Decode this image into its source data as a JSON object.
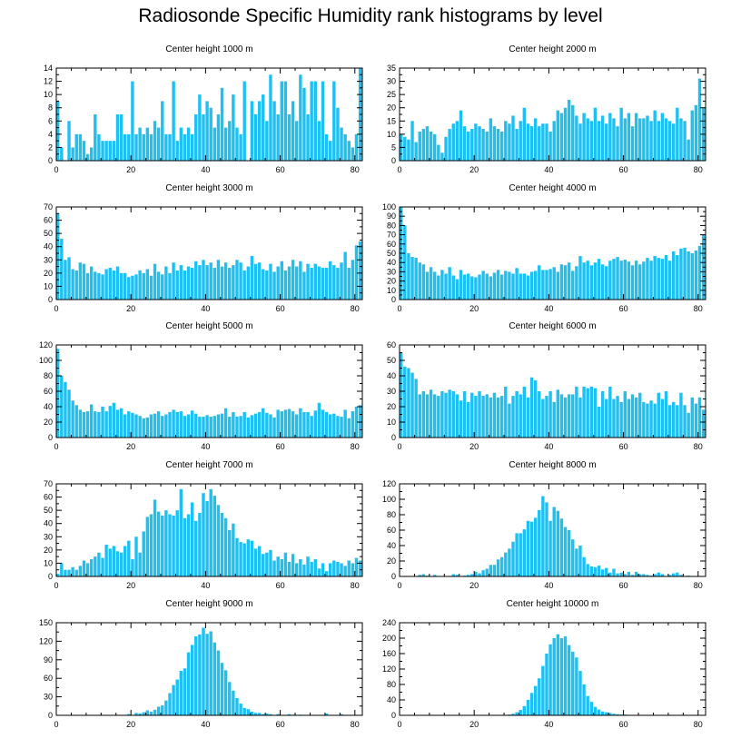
{
  "title": "Radiosonde Specific Humidity rank histograms by level",
  "colors": {
    "bar": "#1ec0f2",
    "axis": "#000000"
  },
  "chart_data": [
    {
      "type": "bar",
      "title": "Center height 1000 m",
      "xlim": [
        0,
        82
      ],
      "ylim": [
        0,
        14
      ],
      "xticks": [
        0,
        20,
        40,
        60,
        80
      ],
      "yticks": [
        0,
        2,
        4,
        6,
        8,
        10,
        12,
        14
      ],
      "values": [
        9,
        2,
        0,
        6,
        2,
        4,
        4,
        3,
        1,
        2,
        7,
        4,
        3,
        3,
        3,
        3,
        7,
        7,
        4,
        4,
        12,
        4,
        5,
        4,
        5,
        4,
        6,
        5,
        9,
        4,
        4,
        12,
        3,
        5,
        4,
        5,
        4,
        7,
        10,
        7,
        9,
        8,
        5,
        7,
        11,
        5,
        6,
        10,
        5,
        4,
        12,
        0,
        9,
        7,
        9,
        10,
        6,
        13,
        9,
        7,
        12,
        12,
        7,
        9,
        6,
        13,
        11,
        7,
        12,
        12,
        6,
        12,
        4,
        3,
        12,
        8,
        5,
        4,
        3,
        2,
        4,
        14
      ]
    },
    {
      "type": "bar",
      "title": "Center height 2000 m",
      "xlim": [
        0,
        82
      ],
      "ylim": [
        0,
        35
      ],
      "xticks": [
        0,
        20,
        40,
        60,
        80
      ],
      "yticks": [
        0,
        5,
        10,
        15,
        20,
        25,
        30,
        35
      ],
      "values": [
        10,
        9,
        8,
        15,
        7,
        11,
        12,
        13,
        11,
        10,
        6,
        3,
        9,
        12,
        14,
        15,
        19,
        13,
        11,
        12,
        14,
        13,
        12,
        11,
        16,
        13,
        12,
        11,
        15,
        14,
        17,
        12,
        15,
        20,
        14,
        13,
        16,
        13,
        14,
        14,
        11,
        15,
        19,
        18,
        20,
        23,
        21,
        17,
        14,
        18,
        16,
        15,
        20,
        15,
        17,
        14,
        18,
        16,
        13,
        20,
        16,
        18,
        13,
        18,
        16,
        16,
        17,
        15,
        19,
        15,
        18,
        16,
        15,
        14,
        20,
        16,
        15,
        8,
        19,
        21,
        31,
        20
      ]
    },
    {
      "type": "bar",
      "title": "Center height 3000 m",
      "xlim": [
        0,
        82
      ],
      "ylim": [
        0,
        70
      ],
      "xticks": [
        0,
        20,
        40,
        60,
        80
      ],
      "yticks": [
        0,
        10,
        20,
        30,
        40,
        50,
        60,
        70
      ],
      "values": [
        65,
        46,
        30,
        32,
        23,
        22,
        28,
        27,
        20,
        25,
        21,
        20,
        19,
        23,
        24,
        22,
        25,
        20,
        20,
        17,
        18,
        19,
        22,
        20,
        23,
        18,
        27,
        21,
        19,
        25,
        20,
        28,
        22,
        26,
        22,
        25,
        24,
        29,
        26,
        30,
        26,
        28,
        24,
        30,
        25,
        28,
        24,
        26,
        30,
        28,
        22,
        25,
        33,
        27,
        28,
        23,
        22,
        27,
        21,
        25,
        29,
        22,
        25,
        30,
        25,
        29,
        21,
        27,
        24,
        27,
        25,
        24,
        24,
        29,
        26,
        24,
        28,
        36,
        24,
        30,
        41,
        44
      ]
    },
    {
      "type": "bar",
      "title": "Center height 4000 m",
      "xlim": [
        0,
        82
      ],
      "ylim": [
        0,
        100
      ],
      "xticks": [
        0,
        20,
        40,
        60,
        80
      ],
      "yticks": [
        0,
        10,
        20,
        30,
        40,
        50,
        60,
        70,
        80,
        90,
        100
      ],
      "values": [
        100,
        80,
        50,
        46,
        45,
        40,
        38,
        30,
        35,
        30,
        26,
        32,
        28,
        35,
        26,
        22,
        32,
        27,
        28,
        25,
        24,
        27,
        31,
        28,
        25,
        29,
        32,
        27,
        31,
        30,
        28,
        34,
        28,
        28,
        26,
        30,
        31,
        37,
        32,
        32,
        33,
        35,
        30,
        38,
        37,
        40,
        31,
        36,
        47,
        40,
        42,
        37,
        40,
        44,
        38,
        36,
        42,
        44,
        46,
        42,
        43,
        41,
        37,
        42,
        38,
        41,
        45,
        42,
        47,
        45,
        44,
        48,
        42,
        52,
        48,
        55,
        56,
        52,
        50,
        53,
        58,
        70
      ]
    },
    {
      "type": "bar",
      "title": "Center height 5000 m",
      "xlim": [
        0,
        82
      ],
      "ylim": [
        0,
        120
      ],
      "xticks": [
        0,
        20,
        40,
        60,
        80
      ],
      "yticks": [
        0,
        20,
        40,
        60,
        80,
        100,
        120
      ],
      "values": [
        115,
        80,
        72,
        62,
        48,
        42,
        36,
        33,
        34,
        43,
        34,
        33,
        40,
        34,
        41,
        45,
        36,
        38,
        30,
        34,
        32,
        30,
        28,
        25,
        26,
        30,
        31,
        34,
        28,
        30,
        33,
        36,
        33,
        34,
        28,
        30,
        35,
        31,
        27,
        27,
        29,
        27,
        28,
        30,
        31,
        38,
        27,
        33,
        27,
        28,
        33,
        26,
        29,
        31,
        33,
        38,
        32,
        30,
        26,
        36,
        34,
        36,
        37,
        34,
        30,
        38,
        33,
        33,
        28,
        35,
        45,
        36,
        33,
        30,
        31,
        28,
        27,
        36,
        25,
        34,
        40,
        42
      ]
    },
    {
      "type": "bar",
      "title": "Center height 6000 m",
      "xlim": [
        0,
        82
      ],
      "ylim": [
        0,
        60
      ],
      "xticks": [
        0,
        20,
        40,
        60,
        80
      ],
      "yticks": [
        0,
        10,
        20,
        30,
        40,
        50,
        60
      ],
      "values": [
        55,
        46,
        45,
        42,
        38,
        28,
        30,
        28,
        31,
        28,
        27,
        30,
        29,
        31,
        30,
        28,
        24,
        30,
        23,
        29,
        27,
        30,
        27,
        28,
        26,
        29,
        26,
        27,
        33,
        22,
        27,
        30,
        28,
        33,
        26,
        39,
        37,
        30,
        25,
        27,
        30,
        23,
        31,
        28,
        26,
        28,
        28,
        33,
        26,
        33,
        32,
        33,
        32,
        20,
        30,
        25,
        33,
        25,
        27,
        23,
        30,
        25,
        28,
        26,
        29,
        23,
        22,
        24,
        22,
        29,
        25,
        30,
        21,
        23,
        21,
        29,
        21,
        16,
        26,
        22,
        26,
        18
      ]
    },
    {
      "type": "bar",
      "title": "Center height 7000 m",
      "xlim": [
        0,
        82
      ],
      "ylim": [
        0,
        70
      ],
      "xticks": [
        0,
        20,
        40,
        60,
        80
      ],
      "yticks": [
        0,
        10,
        20,
        30,
        40,
        50,
        60,
        70
      ],
      "values": [
        2,
        10,
        5,
        5,
        7,
        5,
        8,
        12,
        10,
        13,
        15,
        18,
        14,
        24,
        21,
        23,
        19,
        18,
        23,
        27,
        13,
        30,
        18,
        34,
        45,
        47,
        58,
        49,
        46,
        50,
        47,
        46,
        50,
        66,
        44,
        47,
        56,
        42,
        48,
        63,
        57,
        66,
        61,
        54,
        48,
        44,
        35,
        40,
        29,
        26,
        25,
        28,
        27,
        21,
        23,
        17,
        18,
        20,
        12,
        15,
        13,
        18,
        11,
        17,
        10,
        13,
        9,
        15,
        11,
        13,
        6,
        10,
        4,
        10,
        12,
        11,
        10,
        8,
        12,
        10,
        14,
        12
      ]
    },
    {
      "type": "bar",
      "title": "Center height 8000 m",
      "xlim": [
        0,
        82
      ],
      "ylim": [
        0,
        120
      ],
      "xticks": [
        0,
        20,
        40,
        60,
        80
      ],
      "yticks": [
        0,
        20,
        40,
        60,
        80,
        100,
        120
      ],
      "values": [
        0,
        0,
        0,
        0,
        0,
        2,
        3,
        1,
        0,
        2,
        0,
        0,
        0,
        0,
        3,
        2,
        0,
        1,
        2,
        3,
        6,
        4,
        8,
        10,
        15,
        15,
        22,
        25,
        31,
        36,
        45,
        56,
        56,
        61,
        72,
        71,
        76,
        86,
        104,
        96,
        72,
        90,
        85,
        75,
        64,
        60,
        48,
        36,
        40,
        25,
        16,
        13,
        12,
        14,
        9,
        11,
        5,
        10,
        4,
        5,
        3,
        6,
        2,
        6,
        3,
        3,
        2,
        1,
        3,
        5,
        3,
        0,
        2,
        4,
        5,
        2,
        0,
        1,
        0,
        0,
        0,
        0
      ]
    },
    {
      "type": "bar",
      "title": "Center height 9000 m",
      "xlim": [
        0,
        82
      ],
      "ylim": [
        0,
        150
      ],
      "xticks": [
        0,
        20,
        40,
        60,
        80
      ],
      "yticks": [
        0,
        30,
        60,
        90,
        120,
        150
      ],
      "values": [
        0,
        0,
        0,
        0,
        0,
        0,
        0,
        0,
        0,
        0,
        0,
        0,
        0,
        0,
        0,
        0,
        0,
        0,
        0,
        2,
        0,
        4,
        3,
        5,
        8,
        6,
        9,
        14,
        16,
        24,
        36,
        49,
        58,
        72,
        76,
        102,
        114,
        128,
        131,
        142,
        132,
        136,
        118,
        105,
        85,
        73,
        54,
        40,
        28,
        19,
        12,
        10,
        6,
        4,
        4,
        2,
        3,
        2,
        0,
        2,
        0,
        0,
        2,
        1,
        0,
        1,
        0,
        0,
        0,
        0,
        0,
        0,
        3,
        0,
        0,
        0,
        2,
        0,
        0,
        0,
        0,
        0
      ]
    },
    {
      "type": "bar",
      "title": "Center height 10000 m",
      "xlim": [
        0,
        82
      ],
      "ylim": [
        0,
        240
      ],
      "xticks": [
        0,
        20,
        40,
        60,
        80
      ],
      "yticks": [
        0,
        40,
        80,
        120,
        160,
        200,
        240
      ],
      "values": [
        0,
        0,
        0,
        0,
        0,
        0,
        0,
        0,
        0,
        0,
        0,
        0,
        0,
        0,
        0,
        0,
        0,
        0,
        0,
        0,
        0,
        0,
        0,
        0,
        0,
        0,
        0,
        0,
        0,
        2,
        4,
        8,
        14,
        24,
        40,
        58,
        76,
        96,
        128,
        160,
        184,
        200,
        210,
        200,
        205,
        182,
        165,
        150,
        115,
        80,
        50,
        35,
        22,
        15,
        10,
        8,
        6,
        4,
        3,
        2,
        2,
        0,
        1,
        0,
        1,
        0,
        0,
        0,
        0,
        0,
        0,
        0,
        0,
        0,
        0,
        0,
        0,
        0,
        0,
        0,
        0,
        0
      ]
    }
  ]
}
